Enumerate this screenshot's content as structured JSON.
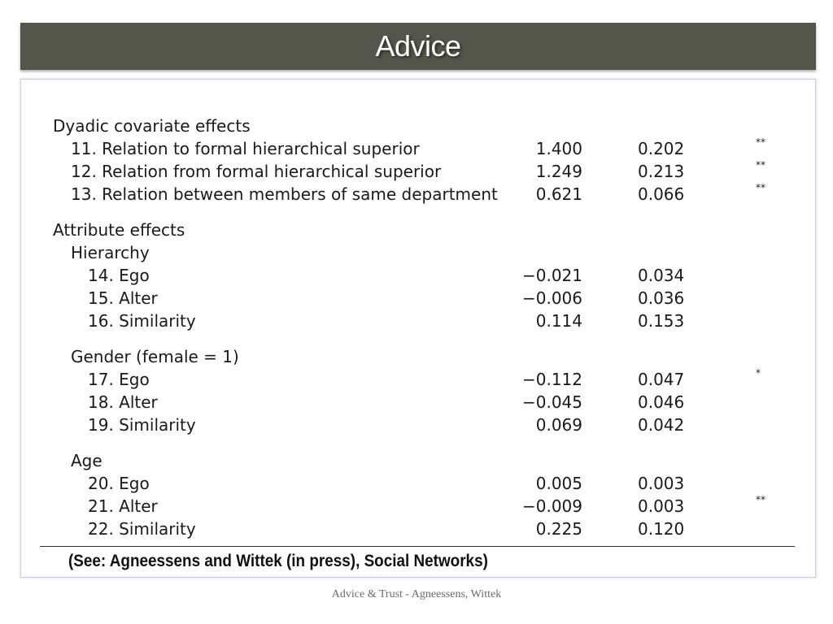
{
  "slide": {
    "title": "Advice",
    "citation": "(See: Agneessens and Wittek (in press), Social Networks)",
    "footer": "Advice & Trust - Agneessens, Wittek"
  },
  "table": {
    "rows": [
      {
        "label": "Dyadic covariate effects",
        "indent": 0,
        "estimate": "",
        "se": "",
        "sig": "",
        "gap": false
      },
      {
        "label": "11. Relation to formal hierarchical superior",
        "indent": 1,
        "estimate": "1.400",
        "se": "0.202",
        "sig": "**",
        "gap": false
      },
      {
        "label": "12. Relation from formal hierarchical superior",
        "indent": 1,
        "estimate": "1.249",
        "se": "0.213",
        "sig": "**",
        "gap": false
      },
      {
        "label": "13. Relation between members of same department",
        "indent": 1,
        "estimate": "0.621",
        "se": "0.066",
        "sig": "**",
        "gap": false
      },
      {
        "label": "Attribute effects",
        "indent": 0,
        "estimate": "",
        "se": "",
        "sig": "",
        "gap": true
      },
      {
        "label": "Hierarchy",
        "indent": 1,
        "estimate": "",
        "se": "",
        "sig": "",
        "gap": false
      },
      {
        "label": "14. Ego",
        "indent": 2,
        "estimate": "−0.021",
        "se": "0.034",
        "sig": "",
        "gap": false
      },
      {
        "label": "15. Alter",
        "indent": 2,
        "estimate": "−0.006",
        "se": "0.036",
        "sig": "",
        "gap": false
      },
      {
        "label": "16. Similarity",
        "indent": 2,
        "estimate": "0.114",
        "se": "0.153",
        "sig": "",
        "gap": false
      },
      {
        "label": "Gender (female = 1)",
        "indent": 1,
        "estimate": "",
        "se": "",
        "sig": "",
        "gap": true
      },
      {
        "label": "17. Ego",
        "indent": 2,
        "estimate": "−0.112",
        "se": "0.047",
        "sig": "*",
        "gap": false
      },
      {
        "label": "18. Alter",
        "indent": 2,
        "estimate": "−0.045",
        "se": "0.046",
        "sig": "",
        "gap": false
      },
      {
        "label": "19. Similarity",
        "indent": 2,
        "estimate": "0.069",
        "se": "0.042",
        "sig": "",
        "gap": false
      },
      {
        "label": "Age",
        "indent": 1,
        "estimate": "",
        "se": "",
        "sig": "",
        "gap": true
      },
      {
        "label": "20. Ego",
        "indent": 2,
        "estimate": "0.005",
        "se": "0.003",
        "sig": "",
        "gap": false
      },
      {
        "label": "21. Alter",
        "indent": 2,
        "estimate": "−0.009",
        "se": "0.003",
        "sig": "**",
        "gap": false
      },
      {
        "label": "22. Similarity",
        "indent": 2,
        "estimate": "0.225",
        "se": "0.120",
        "sig": "",
        "gap": false
      }
    ]
  }
}
